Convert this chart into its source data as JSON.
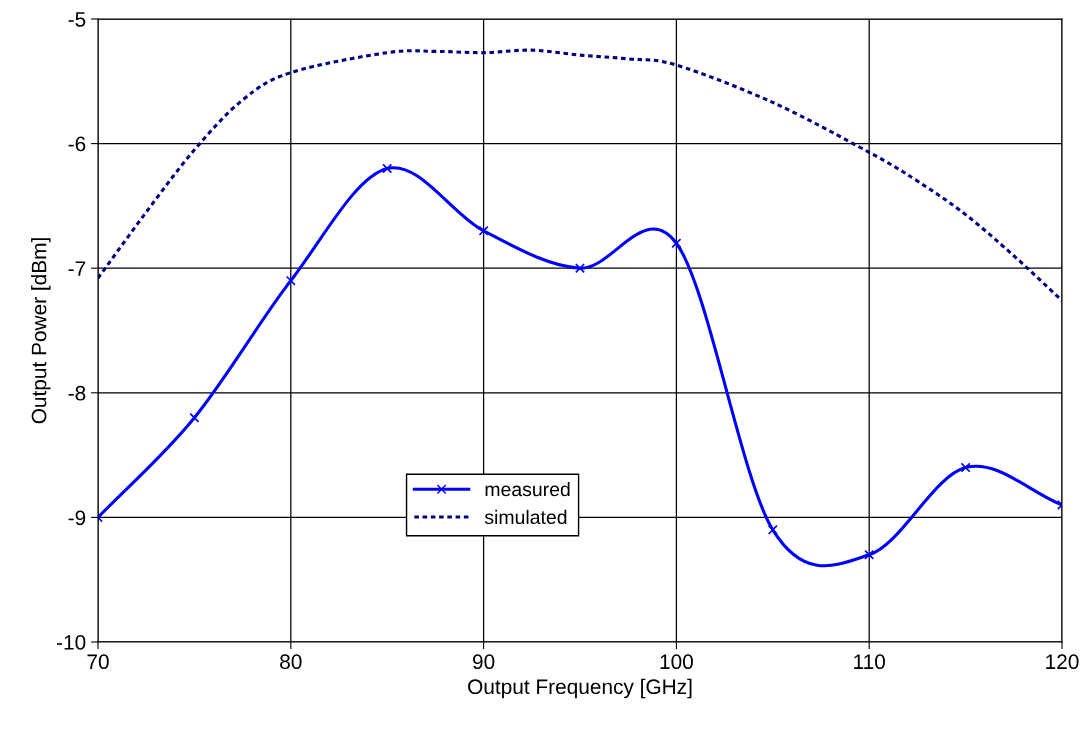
{
  "chart_data": {
    "type": "line",
    "xlabel": "Output Frequency [GHz]",
    "ylabel": "Output Power [dBm]",
    "xlim": [
      70,
      120
    ],
    "xticks": [
      70,
      80,
      90,
      100,
      110,
      120
    ],
    "ylim": [
      -10,
      -5
    ],
    "yticks": [
      -10,
      -9,
      -8,
      -7,
      -6,
      -5
    ],
    "grid": true,
    "legend": "bottom",
    "series": [
      {
        "name": "measured",
        "color": "#0000ff",
        "marker": "cross",
        "line_style": "solid",
        "x": [
          70,
          75,
          80,
          85,
          90,
          95,
          100,
          105,
          110,
          115,
          120
        ],
        "values": [
          -9.0,
          -8.2,
          -7.1,
          -6.2,
          -6.7,
          -7.0,
          -6.8,
          -9.1,
          -9.3,
          -8.6,
          -8.9
        ]
      },
      {
        "name": "simulated",
        "color": "#000080",
        "marker": "none",
        "line_style": "dotted",
        "x": [
          70,
          72.5,
          75,
          77.5,
          80,
          85,
          87.5,
          90,
          92.5,
          95,
          97.5,
          100,
          105,
          110,
          112.5,
          115,
          117.5,
          120
        ],
        "values": [
          -7.08,
          -6.55,
          -6.05,
          -5.65,
          -5.43,
          -5.27,
          -5.26,
          -5.27,
          -5.25,
          -5.29,
          -5.32,
          -5.37,
          -5.67,
          -6.07,
          -6.3,
          -6.57,
          -6.9,
          -7.26
        ]
      }
    ]
  }
}
